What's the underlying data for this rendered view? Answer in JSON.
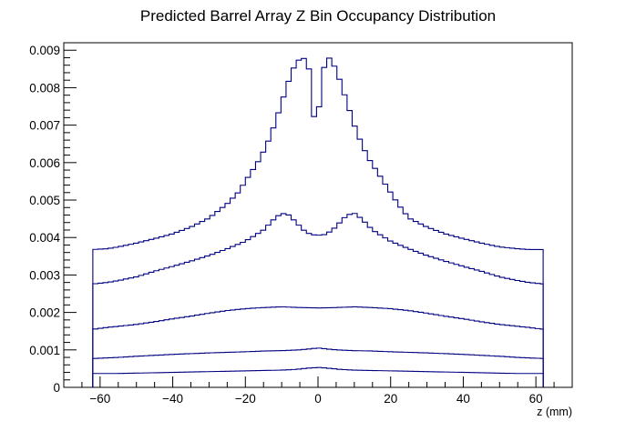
{
  "chart_data": {
    "type": "line",
    "style": "step-histogram",
    "title": "Predicted Barrel Array Z Bin Occupancy Distribution",
    "xlabel": "z (mm)",
    "ylabel": "",
    "xlim": [
      -70,
      70
    ],
    "ylim": [
      0,
      0.0092
    ],
    "x_ticks": [
      -60,
      -40,
      -20,
      0,
      20,
      40,
      60
    ],
    "y_ticks": [
      {
        "value": 0,
        "label": "0"
      },
      {
        "value": 0.001,
        "label": "0.001"
      },
      {
        "value": 0.002,
        "label": "0.002"
      },
      {
        "value": 0.003,
        "label": "0.003"
      },
      {
        "value": 0.004,
        "label": "0.004"
      },
      {
        "value": 0.005,
        "label": "0.005"
      },
      {
        "value": 0.006,
        "label": "0.006"
      },
      {
        "value": 0.007,
        "label": "0.007"
      },
      {
        "value": 0.008,
        "label": "0.008"
      },
      {
        "value": 0.009,
        "label": "0.009"
      }
    ],
    "grid": false,
    "line_color": "#000080",
    "series": [
      {
        "x": [
          -62,
          -55,
          -50,
          -40,
          -30,
          -20,
          -15,
          -10,
          -8,
          -6,
          -4,
          -2,
          0,
          2,
          4,
          6,
          8,
          10,
          15,
          20,
          30,
          40,
          50,
          55,
          62
        ],
        "values": [
          0.00037,
          0.00037,
          0.00038,
          0.0004,
          0.00042,
          0.00044,
          0.00045,
          0.00046,
          0.00047,
          0.00048,
          0.0005,
          0.00052,
          0.00053,
          0.00052,
          0.0005,
          0.00048,
          0.00047,
          0.00046,
          0.00045,
          0.00044,
          0.00042,
          0.0004,
          0.00038,
          0.00037,
          0.00037
        ]
      },
      {
        "x": [
          -62,
          -55,
          -50,
          -40,
          -30,
          -20,
          -15,
          -10,
          -5,
          -2,
          0,
          2,
          5,
          10,
          15,
          20,
          30,
          40,
          50,
          55,
          62
        ],
        "values": [
          0.00077,
          0.0008,
          0.00083,
          0.00088,
          0.00092,
          0.00095,
          0.00097,
          0.00098,
          0.001,
          0.00103,
          0.00105,
          0.00103,
          0.001,
          0.00098,
          0.00097,
          0.00095,
          0.00092,
          0.00088,
          0.00083,
          0.0008,
          0.00077
        ]
      },
      {
        "x": [
          -62,
          -58,
          -55,
          -50,
          -45,
          -40,
          -35,
          -30,
          -25,
          -20,
          -15,
          -10,
          -5,
          0,
          5,
          10,
          15,
          20,
          25,
          30,
          35,
          40,
          45,
          50,
          55,
          58,
          62
        ],
        "values": [
          0.00155,
          0.0016,
          0.00163,
          0.00168,
          0.00175,
          0.00183,
          0.0019,
          0.00198,
          0.00205,
          0.0021,
          0.00213,
          0.00215,
          0.00213,
          0.00212,
          0.00213,
          0.00215,
          0.00213,
          0.0021,
          0.00205,
          0.00198,
          0.0019,
          0.00183,
          0.00175,
          0.00168,
          0.00163,
          0.0016,
          0.00155
        ]
      },
      {
        "x": [
          -62,
          -58,
          -55,
          -50,
          -45,
          -40,
          -35,
          -30,
          -25,
          -20,
          -15,
          -12,
          -10,
          -8,
          -6,
          -4,
          -2,
          0,
          2,
          4,
          6,
          8,
          10,
          12,
          15,
          20,
          25,
          30,
          35,
          40,
          45,
          50,
          55,
          58,
          62
        ],
        "values": [
          0.00276,
          0.0028,
          0.00285,
          0.00295,
          0.0031,
          0.00323,
          0.00337,
          0.00352,
          0.0037,
          0.0039,
          0.0042,
          0.0045,
          0.00465,
          0.0046,
          0.0044,
          0.0042,
          0.00408,
          0.00406,
          0.00408,
          0.0042,
          0.0044,
          0.0046,
          0.00465,
          0.0045,
          0.0042,
          0.0039,
          0.0037,
          0.00352,
          0.00337,
          0.00323,
          0.0031,
          0.00295,
          0.00285,
          0.0028,
          0.00276
        ]
      },
      {
        "x": [
          -62,
          -58,
          -55,
          -50,
          -45,
          -40,
          -35,
          -30,
          -25,
          -22,
          -20,
          -18,
          -16,
          -14,
          -12,
          -10,
          -8,
          -6,
          -4,
          -3,
          -2,
          -1,
          0,
          1,
          2,
          3,
          4,
          6,
          8,
          10,
          12,
          14,
          16,
          18,
          20,
          22,
          25,
          30,
          35,
          40,
          45,
          50,
          55,
          58,
          62
        ],
        "values": [
          0.00368,
          0.0037,
          0.00375,
          0.00385,
          0.00397,
          0.0041,
          0.00428,
          0.00452,
          0.0049,
          0.0052,
          0.0055,
          0.0058,
          0.0061,
          0.0065,
          0.007,
          0.0076,
          0.0082,
          0.0087,
          0.0088,
          0.0086,
          0.0084,
          0.0071,
          0.0071,
          0.0084,
          0.0086,
          0.0088,
          0.0087,
          0.0082,
          0.0076,
          0.007,
          0.0065,
          0.0061,
          0.0058,
          0.0055,
          0.0052,
          0.0049,
          0.00452,
          0.00428,
          0.0041,
          0.00397,
          0.00385,
          0.00375,
          0.0037,
          0.00368,
          0.00368
        ]
      }
    ]
  }
}
